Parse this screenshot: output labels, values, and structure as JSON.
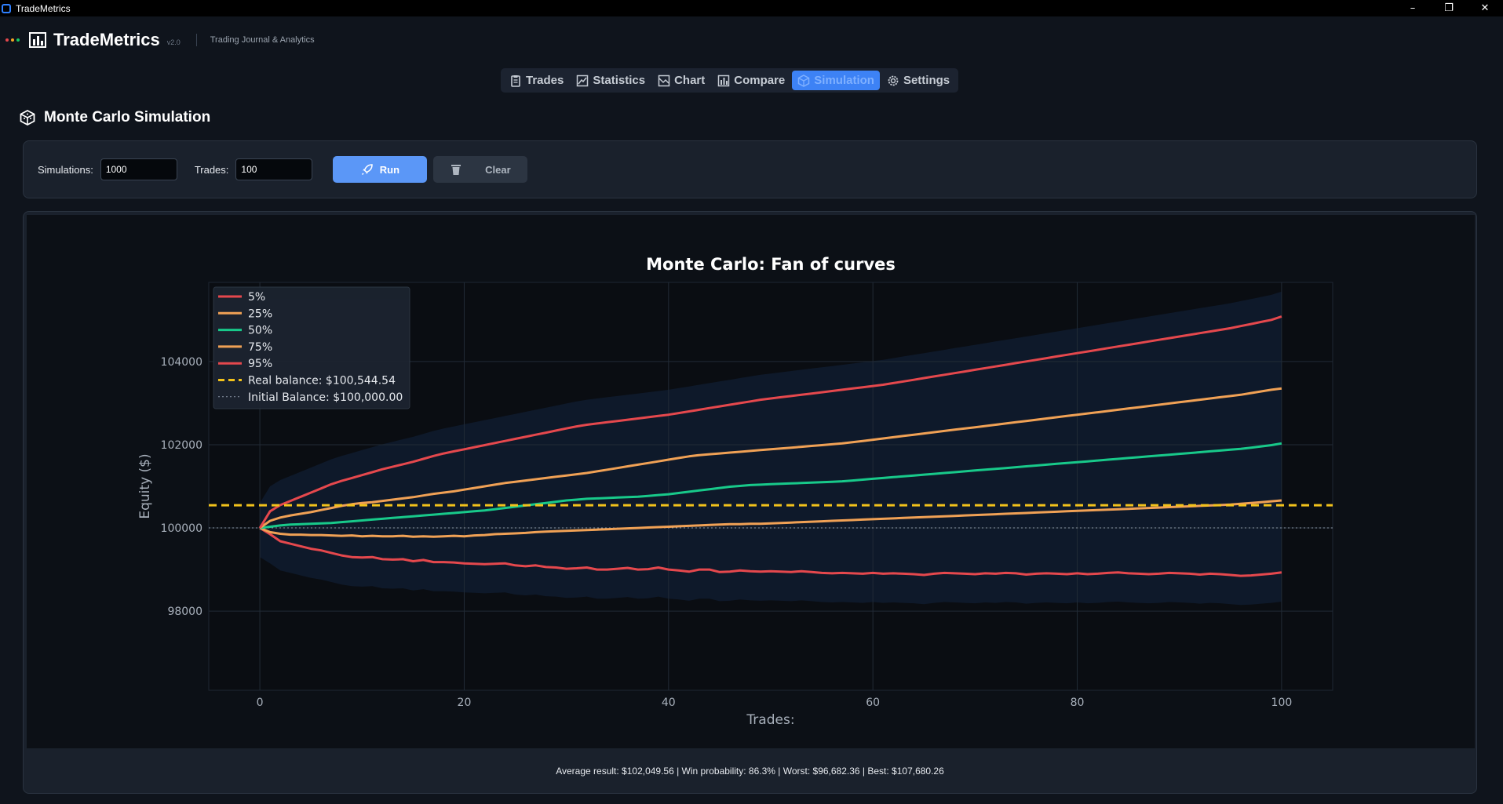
{
  "window": {
    "title": "TradeMetrics",
    "controls": [
      "–",
      "❐",
      "✕"
    ]
  },
  "header": {
    "brand": "TradeMetrics",
    "version": "v2.0",
    "subtitle": "Trading Journal & Analytics",
    "dot_colors": [
      "#e5484d",
      "#f5a524",
      "#18c964"
    ]
  },
  "tabs": [
    {
      "label": "Trades",
      "icon": "clipboard-icon"
    },
    {
      "label": "Statistics",
      "icon": "trend-chart-icon"
    },
    {
      "label": "Chart",
      "icon": "area-chart-icon"
    },
    {
      "label": "Compare",
      "icon": "bar-chart-icon"
    },
    {
      "label": "Simulation",
      "icon": "dice-icon",
      "active": true
    },
    {
      "label": "Settings",
      "icon": "gear-icon"
    }
  ],
  "section": {
    "title": "Monte Carlo Simulation"
  },
  "controls": {
    "simulations_label": "Simulations:",
    "simulations_value": "1000",
    "trades_label": "Trades:",
    "trades_value": "100",
    "run_label": "Run",
    "clear_label": "Clear"
  },
  "stats": {
    "text": "Average result: $102,049.56  |  Win probability: 86.3%  |  Worst: $96,682.36  |  Best: $107,680.26"
  },
  "colors": {
    "accent": "#3d82f5",
    "p5": "#e5484d",
    "p25": "#f0a155",
    "p50": "#18c98a",
    "real": "#f2c21b",
    "initial": "#8b96a5"
  },
  "chart_data": {
    "type": "line",
    "title": "Monte Carlo: Fan of curves",
    "xlabel": "Trades:",
    "ylabel": "Equity ($)",
    "xlim": [
      -5,
      105
    ],
    "ylim": [
      96100,
      105900
    ],
    "x_ticks": [
      0,
      20,
      40,
      60,
      80,
      100
    ],
    "y_ticks": [
      98000,
      100000,
      102000,
      104000
    ],
    "grid": true,
    "legend_position": "top-left",
    "x_start": 0,
    "x_step": 1,
    "series": [
      {
        "name": "5%",
        "color": "#e5484d",
        "values": [
          100000,
          99850,
          99680,
          99620,
          99560,
          99500,
          99460,
          99400,
          99340,
          99300,
          99290,
          99300,
          99250,
          99240,
          99250,
          99200,
          99230,
          99180,
          99180,
          99170,
          99150,
          99140,
          99130,
          99140,
          99150,
          99100,
          99080,
          99100,
          99060,
          99050,
          99020,
          99030,
          99050,
          99000,
          99000,
          99020,
          99040,
          99000,
          99010,
          99050,
          99000,
          98980,
          98950,
          99000,
          99000,
          98940,
          98950,
          98980,
          98960,
          98950,
          98960,
          98950,
          98940,
          98960,
          98940,
          98920,
          98910,
          98920,
          98910,
          98900,
          98920,
          98900,
          98910,
          98900,
          98890,
          98870,
          98900,
          98920,
          98910,
          98900,
          98890,
          98910,
          98900,
          98920,
          98910,
          98880,
          98900,
          98910,
          98900,
          98890,
          98910,
          98890,
          98900,
          98920,
          98930,
          98910,
          98900,
          98890,
          98900,
          98920,
          98910,
          98900,
          98880,
          98900,
          98890,
          98870,
          98850,
          98860,
          98880,
          98900,
          98930
        ]
      },
      {
        "name": "25%",
        "color": "#f0a155",
        "values": [
          100000,
          99900,
          99860,
          99840,
          99840,
          99830,
          99830,
          99820,
          99810,
          99820,
          99800,
          99810,
          99800,
          99800,
          99810,
          99790,
          99800,
          99790,
          99800,
          99810,
          99800,
          99820,
          99830,
          99850,
          99860,
          99870,
          99880,
          99900,
          99910,
          99920,
          99930,
          99940,
          99950,
          99960,
          99970,
          99980,
          99990,
          100000,
          100010,
          100020,
          100030,
          100040,
          100050,
          100060,
          100070,
          100080,
          100090,
          100090,
          100100,
          100100,
          100110,
          100120,
          100130,
          100140,
          100150,
          100160,
          100170,
          100180,
          100190,
          100200,
          100210,
          100220,
          100230,
          100240,
          100250,
          100260,
          100270,
          100280,
          100290,
          100300,
          100310,
          100320,
          100330,
          100340,
          100350,
          100360,
          100370,
          100380,
          100390,
          100400,
          100410,
          100420,
          100430,
          100440,
          100450,
          100460,
          100470,
          100480,
          100490,
          100500,
          100510,
          100520,
          100530,
          100540,
          100550,
          100560,
          100580,
          100600,
          100620,
          100640,
          100660
        ]
      },
      {
        "name": "50%",
        "color": "#18c98a",
        "values": [
          100000,
          100030,
          100060,
          100080,
          100090,
          100100,
          100110,
          100120,
          100140,
          100160,
          100180,
          100200,
          100220,
          100240,
          100260,
          100280,
          100300,
          100320,
          100340,
          100360,
          100380,
          100400,
          100420,
          100450,
          100480,
          100510,
          100540,
          100570,
          100600,
          100630,
          100660,
          100680,
          100700,
          100710,
          100720,
          100730,
          100740,
          100750,
          100770,
          100790,
          100810,
          100840,
          100870,
          100900,
          100930,
          100960,
          100990,
          101010,
          101030,
          101040,
          101050,
          101060,
          101070,
          101080,
          101090,
          101100,
          101110,
          101120,
          101140,
          101160,
          101180,
          101200,
          101220,
          101240,
          101260,
          101280,
          101300,
          101320,
          101340,
          101360,
          101380,
          101400,
          101420,
          101440,
          101460,
          101480,
          101500,
          101520,
          101540,
          101560,
          101580,
          101600,
          101620,
          101640,
          101660,
          101680,
          101700,
          101720,
          101740,
          101760,
          101780,
          101800,
          101820,
          101840,
          101860,
          101880,
          101900,
          101930,
          101960,
          101990,
          102030
        ]
      },
      {
        "name": "75%",
        "color": "#f0a155",
        "values": [
          100000,
          100170,
          100250,
          100300,
          100340,
          100380,
          100430,
          100480,
          100530,
          100570,
          100600,
          100620,
          100650,
          100680,
          100710,
          100740,
          100780,
          100820,
          100850,
          100880,
          100920,
          100960,
          101000,
          101040,
          101080,
          101110,
          101140,
          101170,
          101200,
          101230,
          101260,
          101290,
          101320,
          101360,
          101400,
          101440,
          101480,
          101520,
          101560,
          101600,
          101640,
          101680,
          101720,
          101750,
          101770,
          101790,
          101810,
          101830,
          101850,
          101870,
          101890,
          101910,
          101930,
          101950,
          101970,
          101990,
          102010,
          102030,
          102060,
          102090,
          102120,
          102150,
          102180,
          102210,
          102240,
          102270,
          102300,
          102330,
          102360,
          102390,
          102420,
          102450,
          102480,
          102510,
          102540,
          102570,
          102600,
          102630,
          102660,
          102690,
          102720,
          102750,
          102780,
          102810,
          102840,
          102870,
          102900,
          102930,
          102960,
          102990,
          103020,
          103050,
          103080,
          103110,
          103140,
          103170,
          103200,
          103240,
          103280,
          103320,
          103350
        ]
      },
      {
        "name": "95%",
        "color": "#e5484d",
        "values": [
          100000,
          100400,
          100550,
          100650,
          100750,
          100850,
          100950,
          101050,
          101130,
          101200,
          101270,
          101340,
          101410,
          101470,
          101530,
          101590,
          101660,
          101730,
          101790,
          101840,
          101890,
          101940,
          101990,
          102040,
          102090,
          102140,
          102190,
          102240,
          102290,
          102340,
          102390,
          102440,
          102480,
          102510,
          102540,
          102570,
          102600,
          102630,
          102660,
          102690,
          102720,
          102760,
          102800,
          102840,
          102880,
          102920,
          102960,
          103000,
          103040,
          103080,
          103110,
          103140,
          103170,
          103200,
          103230,
          103260,
          103290,
          103320,
          103350,
          103380,
          103410,
          103440,
          103480,
          103520,
          103560,
          103600,
          103640,
          103680,
          103720,
          103760,
          103800,
          103840,
          103880,
          103920,
          103960,
          104000,
          104040,
          104080,
          104120,
          104160,
          104200,
          104240,
          104280,
          104320,
          104360,
          104400,
          104440,
          104480,
          104520,
          104560,
          104600,
          104640,
          104680,
          104720,
          104760,
          104800,
          104850,
          104900,
          104950,
          105000,
          105080
        ]
      }
    ],
    "reference_lines": [
      {
        "name": "Real balance: $100,544.54",
        "value": 100544.54,
        "style": "dashed",
        "color": "#f2c21b"
      },
      {
        "name": "Initial Balance: $100,000.00",
        "value": 100000,
        "style": "dotted",
        "color": "#8b96a5"
      }
    ],
    "legend": [
      {
        "label": "5%",
        "color": "#e5484d",
        "style": "solid"
      },
      {
        "label": "25%",
        "color": "#f0a155",
        "style": "solid"
      },
      {
        "label": "50%",
        "color": "#18c98a",
        "style": "solid"
      },
      {
        "label": "75%",
        "color": "#f0a155",
        "style": "solid"
      },
      {
        "label": "95%",
        "color": "#e5484d",
        "style": "solid"
      },
      {
        "label": "Real balance: $100,544.54",
        "color": "#f2c21b",
        "style": "dashed"
      },
      {
        "label": "Initial Balance: $100,000.00",
        "color": "#8b96a5",
        "style": "dotted"
      }
    ]
  }
}
